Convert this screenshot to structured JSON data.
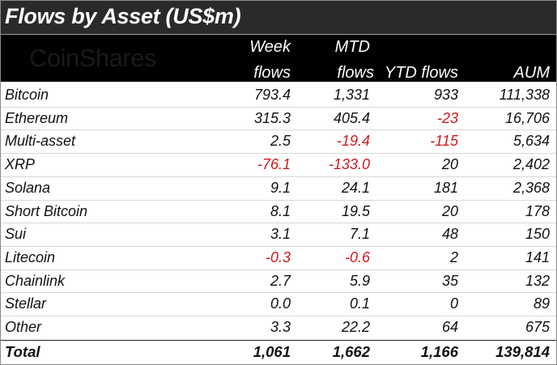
{
  "title": "Flows by Asset (US$m)",
  "logo": "CoinShares",
  "headers": {
    "week_line1": "Week",
    "week_line2": "flows",
    "mtd_line1": "MTD",
    "mtd_line2": "flows",
    "ytd": "YTD flows",
    "aum": "AUM"
  },
  "colors": {
    "negative": "#d11a1a",
    "header_bg": "#000000",
    "title_bg": "#2a2a2a"
  },
  "rows": [
    {
      "asset": "Bitcoin",
      "week": "793.4",
      "mtd": "1,331",
      "ytd": "933",
      "aum": "111,338"
    },
    {
      "asset": "Ethereum",
      "week": "315.3",
      "mtd": "405.4",
      "ytd": "-23",
      "aum": "16,706"
    },
    {
      "asset": "Multi-asset",
      "week": "2.5",
      "mtd": "-19.4",
      "ytd": "-115",
      "aum": "5,634"
    },
    {
      "asset": "XRP",
      "week": "-76.1",
      "mtd": "-133.0",
      "ytd": "20",
      "aum": "2,402"
    },
    {
      "asset": "Solana",
      "week": "9.1",
      "mtd": "24.1",
      "ytd": "181",
      "aum": "2,368"
    },
    {
      "asset": "Short Bitcoin",
      "week": "8.1",
      "mtd": "19.5",
      "ytd": "20",
      "aum": "178"
    },
    {
      "asset": "Sui",
      "week": "3.1",
      "mtd": "7.1",
      "ytd": "48",
      "aum": "150"
    },
    {
      "asset": "Litecoin",
      "week": "-0.3",
      "mtd": "-0.6",
      "ytd": "2",
      "aum": "141"
    },
    {
      "asset": "Chainlink",
      "week": "2.7",
      "mtd": "5.9",
      "ytd": "35",
      "aum": "132"
    },
    {
      "asset": "Stellar",
      "week": "0.0",
      "mtd": "0.1",
      "ytd": "0",
      "aum": "89"
    },
    {
      "asset": "Other",
      "week": "3.3",
      "mtd": "22.2",
      "ytd": "64",
      "aum": "675"
    }
  ],
  "total": {
    "asset": "Total",
    "week": "1,061",
    "mtd": "1,662",
    "ytd": "1,166",
    "aum": "139,814"
  }
}
